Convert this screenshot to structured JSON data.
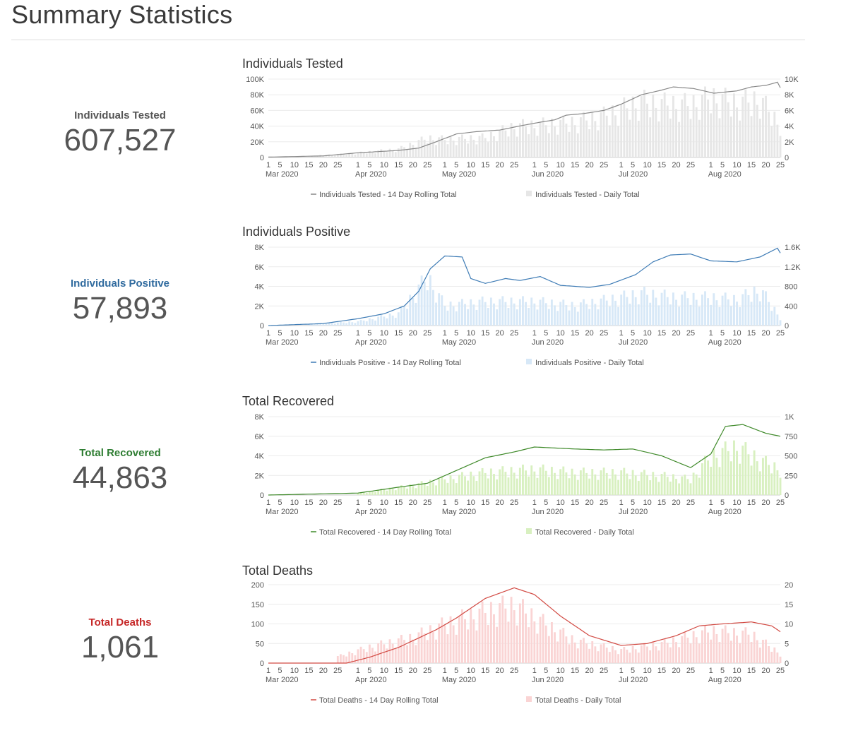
{
  "page": {
    "title": "Summary Statistics"
  },
  "stats": [
    {
      "label": "Individuals Tested",
      "value": "607,527",
      "color": "#555555"
    },
    {
      "label": "Individuals Positive",
      "value": "57,893",
      "color": "#2f6a9e"
    },
    {
      "label": "Total Recovered",
      "value": "44,863",
      "color": "#2e7d32"
    },
    {
      "label": "Total Deaths",
      "value": "1,061",
      "color": "#c62828"
    }
  ],
  "chart_data": [
    {
      "type": "bar+line",
      "title": "Individuals Tested",
      "line_color": "#888888",
      "bar_color": "#e6e6e6",
      "x_start": "2020-03-01",
      "x_end": "2020-08-25",
      "x_day_ticks": [
        1,
        5,
        10,
        15,
        20,
        25
      ],
      "x_month_labels": [
        "Mar 2020",
        "Apr 2020",
        "May 2020",
        "Jun 2020",
        "Jul 2020",
        "Aug 2020"
      ],
      "left_axis": {
        "ticks": [
          "0",
          "20K",
          "40K",
          "60K",
          "80K",
          "100K"
        ],
        "max": 100000
      },
      "right_axis": {
        "ticks": [
          "0",
          "2K",
          "4K",
          "6K",
          "8K",
          "10K"
        ],
        "max": 10000
      },
      "rolling_series": {
        "name": "Individuals Tested - 14 Day Rolling Total",
        "points": [
          [
            "2020-03-01",
            500
          ],
          [
            "2020-03-20",
            2000
          ],
          [
            "2020-04-01",
            6000
          ],
          [
            "2020-04-15",
            9000
          ],
          [
            "2020-04-22",
            12000
          ],
          [
            "2020-04-28",
            20000
          ],
          [
            "2020-05-05",
            30000
          ],
          [
            "2020-05-12",
            33000
          ],
          [
            "2020-05-20",
            35000
          ],
          [
            "2020-05-28",
            41000
          ],
          [
            "2020-06-03",
            45000
          ],
          [
            "2020-06-08",
            48000
          ],
          [
            "2020-06-12",
            54000
          ],
          [
            "2020-06-18",
            56000
          ],
          [
            "2020-06-25",
            60000
          ],
          [
            "2020-07-01",
            68000
          ],
          [
            "2020-07-08",
            80000
          ],
          [
            "2020-07-15",
            86000
          ],
          [
            "2020-07-19",
            90000
          ],
          [
            "2020-07-26",
            88000
          ],
          [
            "2020-08-02",
            82000
          ],
          [
            "2020-08-10",
            85000
          ],
          [
            "2020-08-15",
            90000
          ],
          [
            "2020-08-20",
            92000
          ],
          [
            "2020-08-24",
            96000
          ],
          [
            "2020-08-25",
            89000
          ]
        ]
      },
      "daily_series": {
        "name": "Individuals Tested - Daily Total",
        "points": [
          [
            "2020-03-15",
            200
          ],
          [
            "2020-04-01",
            700
          ],
          [
            "2020-04-15",
            1300
          ],
          [
            "2020-04-25",
            3000
          ],
          [
            "2020-05-01",
            2800
          ],
          [
            "2020-05-15",
            3100
          ],
          [
            "2020-05-25",
            4800
          ],
          [
            "2020-06-01",
            5000
          ],
          [
            "2020-06-15",
            5500
          ],
          [
            "2020-06-25",
            6500
          ],
          [
            "2020-07-01",
            7500
          ],
          [
            "2020-07-08",
            8700
          ],
          [
            "2020-07-15",
            8300
          ],
          [
            "2020-07-25",
            8200
          ],
          [
            "2020-08-01",
            9400
          ],
          [
            "2020-08-10",
            8500
          ],
          [
            "2020-08-18",
            9000
          ],
          [
            "2020-08-25",
            5000
          ]
        ]
      }
    },
    {
      "type": "bar+line",
      "title": "Individuals Positive",
      "line_color": "#3d7bb5",
      "bar_color": "#d7e8f7",
      "x_start": "2020-03-01",
      "x_end": "2020-08-25",
      "x_day_ticks": [
        1,
        5,
        10,
        15,
        20,
        25
      ],
      "x_month_labels": [
        "Mar 2020",
        "Apr 2020",
        "May 2020",
        "Jun 2020",
        "Jul 2020",
        "Aug 2020"
      ],
      "left_axis": {
        "ticks": [
          "0",
          "2K",
          "4K",
          "6K",
          "8K"
        ],
        "max": 8000
      },
      "right_axis": {
        "ticks": [
          "0",
          "400",
          "800",
          "1.2K",
          "1.6K"
        ],
        "max": 1600
      },
      "rolling_series": {
        "name": "Individuals Positive - 14 Day Rolling Total",
        "points": [
          [
            "2020-03-01",
            0
          ],
          [
            "2020-03-20",
            200
          ],
          [
            "2020-04-01",
            700
          ],
          [
            "2020-04-10",
            1200
          ],
          [
            "2020-04-17",
            2000
          ],
          [
            "2020-04-22",
            3500
          ],
          [
            "2020-04-26",
            5800
          ],
          [
            "2020-05-01",
            7100
          ],
          [
            "2020-05-07",
            7000
          ],
          [
            "2020-05-10",
            4800
          ],
          [
            "2020-05-15",
            4300
          ],
          [
            "2020-05-22",
            4800
          ],
          [
            "2020-05-27",
            4600
          ],
          [
            "2020-06-03",
            5000
          ],
          [
            "2020-06-10",
            4100
          ],
          [
            "2020-06-20",
            3900
          ],
          [
            "2020-06-27",
            4200
          ],
          [
            "2020-07-06",
            5200
          ],
          [
            "2020-07-12",
            6500
          ],
          [
            "2020-07-18",
            7200
          ],
          [
            "2020-07-25",
            7300
          ],
          [
            "2020-08-01",
            6600
          ],
          [
            "2020-08-10",
            6500
          ],
          [
            "2020-08-18",
            7000
          ],
          [
            "2020-08-24",
            7900
          ],
          [
            "2020-08-25",
            7400
          ]
        ]
      },
      "daily_series": {
        "name": "Individuals Positive - Daily Total",
        "points": [
          [
            "2020-03-15",
            30
          ],
          [
            "2020-04-01",
            100
          ],
          [
            "2020-04-15",
            300
          ],
          [
            "2020-04-25",
            1200
          ],
          [
            "2020-05-01",
            500
          ],
          [
            "2020-05-15",
            600
          ],
          [
            "2020-06-01",
            600
          ],
          [
            "2020-06-15",
            500
          ],
          [
            "2020-07-01",
            700
          ],
          [
            "2020-07-08",
            800
          ],
          [
            "2020-07-20",
            700
          ],
          [
            "2020-08-01",
            700
          ],
          [
            "2020-08-10",
            650
          ],
          [
            "2020-08-18",
            900
          ],
          [
            "2020-08-25",
            200
          ]
        ]
      }
    },
    {
      "type": "bar+line",
      "title": "Total Recovered",
      "line_color": "#3f8a2a",
      "bar_color": "#d8f0c0",
      "x_start": "2020-03-01",
      "x_end": "2020-08-25",
      "x_day_ticks": [
        1,
        5,
        10,
        15,
        20,
        25
      ],
      "x_month_labels": [
        "Mar 2020",
        "Apr 2020",
        "May 2020",
        "Jun 2020",
        "Jul 2020",
        "Aug 2020"
      ],
      "left_axis": {
        "ticks": [
          "0",
          "2K",
          "4K",
          "6K",
          "8K"
        ],
        "max": 8000
      },
      "right_axis": {
        "ticks": [
          "0",
          "250",
          "500",
          "750",
          "1K"
        ],
        "max": 1000
      },
      "rolling_series": {
        "name": "Total Recovered - 14 Day Rolling Total",
        "points": [
          [
            "2020-03-01",
            0
          ],
          [
            "2020-04-01",
            200
          ],
          [
            "2020-04-15",
            800
          ],
          [
            "2020-04-25",
            1200
          ],
          [
            "2020-05-05",
            2500
          ],
          [
            "2020-05-15",
            3800
          ],
          [
            "2020-05-25",
            4400
          ],
          [
            "2020-06-01",
            4900
          ],
          [
            "2020-06-08",
            4800
          ],
          [
            "2020-06-15",
            4700
          ],
          [
            "2020-06-25",
            4600
          ],
          [
            "2020-07-05",
            4700
          ],
          [
            "2020-07-15",
            4000
          ],
          [
            "2020-07-25",
            2800
          ],
          [
            "2020-08-01",
            4200
          ],
          [
            "2020-08-06",
            7000
          ],
          [
            "2020-08-12",
            7200
          ],
          [
            "2020-08-20",
            6300
          ],
          [
            "2020-08-25",
            6000
          ]
        ]
      },
      "daily_series": {
        "name": "Total Recovered - Daily Total",
        "points": [
          [
            "2020-04-01",
            30
          ],
          [
            "2020-04-20",
            150
          ],
          [
            "2020-05-01",
            250
          ],
          [
            "2020-05-15",
            350
          ],
          [
            "2020-06-01",
            400
          ],
          [
            "2020-06-15",
            350
          ],
          [
            "2020-07-01",
            350
          ],
          [
            "2020-07-15",
            300
          ],
          [
            "2020-07-25",
            250
          ],
          [
            "2020-08-01",
            600
          ],
          [
            "2020-08-10",
            750
          ],
          [
            "2020-08-20",
            500
          ],
          [
            "2020-08-25",
            400
          ]
        ]
      }
    },
    {
      "type": "bar+line",
      "title": "Total Deaths",
      "line_color": "#d24a43",
      "bar_color": "#fad4d4",
      "x_start": "2020-03-01",
      "x_end": "2020-08-25",
      "x_day_ticks": [
        1,
        5,
        10,
        15,
        20,
        25
      ],
      "x_month_labels": [
        "Mar 2020",
        "Apr 2020",
        "May 2020",
        "Jun 2020",
        "Jul 2020",
        "Aug 2020"
      ],
      "left_axis": {
        "ticks": [
          "0",
          "50",
          "100",
          "150",
          "200"
        ],
        "max": 200
      },
      "right_axis": {
        "ticks": [
          "0",
          "5",
          "10",
          "15",
          "20"
        ],
        "max": 20
      },
      "rolling_series": {
        "name": "Total Deaths - 14 Day Rolling Total",
        "points": [
          [
            "2020-03-01",
            0
          ],
          [
            "2020-03-28",
            0
          ],
          [
            "2020-04-05",
            15
          ],
          [
            "2020-04-15",
            40
          ],
          [
            "2020-04-28",
            85
          ],
          [
            "2020-05-05",
            115
          ],
          [
            "2020-05-15",
            165
          ],
          [
            "2020-05-25",
            192
          ],
          [
            "2020-06-01",
            175
          ],
          [
            "2020-06-10",
            120
          ],
          [
            "2020-06-20",
            70
          ],
          [
            "2020-07-01",
            45
          ],
          [
            "2020-07-10",
            50
          ],
          [
            "2020-07-20",
            70
          ],
          [
            "2020-07-28",
            95
          ],
          [
            "2020-08-05",
            100
          ],
          [
            "2020-08-15",
            105
          ],
          [
            "2020-08-22",
            95
          ],
          [
            "2020-08-25",
            80
          ]
        ]
      },
      "daily_series": {
        "name": "Total Deaths - Daily Total",
        "points": [
          [
            "2020-03-25",
            2
          ],
          [
            "2020-04-05",
            5
          ],
          [
            "2020-04-20",
            8
          ],
          [
            "2020-05-01",
            12
          ],
          [
            "2020-05-15",
            16
          ],
          [
            "2020-05-25",
            18
          ],
          [
            "2020-06-05",
            12
          ],
          [
            "2020-06-15",
            7
          ],
          [
            "2020-07-01",
            4
          ],
          [
            "2020-07-15",
            6
          ],
          [
            "2020-08-01",
            10
          ],
          [
            "2020-08-15",
            9
          ],
          [
            "2020-08-25",
            3
          ]
        ]
      }
    }
  ]
}
